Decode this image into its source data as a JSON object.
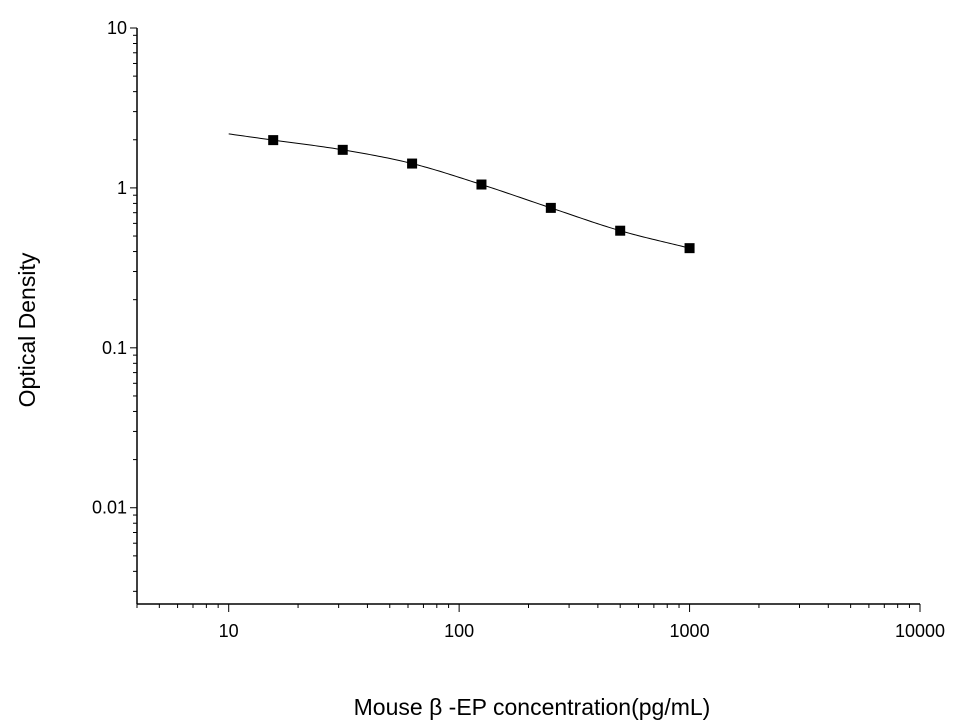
{
  "chart_data": {
    "type": "scatter",
    "title": "",
    "xlabel": "Mouse β -EP concentration(pg/mL)",
    "ylabel": "Optical Density",
    "x_scale": "log",
    "y_scale": "log",
    "xlim": [
      4,
      10000
    ],
    "ylim": [
      0.0025,
      10
    ],
    "x_ticks": [
      10,
      100,
      1000,
      10000
    ],
    "x_tick_labels": [
      "10",
      "100",
      "1000",
      "10000"
    ],
    "y_ticks": [
      0.01,
      0.1,
      1,
      10
    ],
    "y_tick_labels": [
      "0.01",
      "0.1",
      "1",
      "10"
    ],
    "grid": false,
    "legend": "none",
    "series": [
      {
        "x": [
          15.6,
          31.25,
          62.5,
          125,
          250,
          500,
          1000
        ],
        "y": [
          1.99,
          1.73,
          1.42,
          1.05,
          0.75,
          0.54,
          0.42
        ],
        "marker": "square",
        "color": "#000000"
      }
    ],
    "fit_curve": {
      "type": "line",
      "x_range": [
        10,
        1000
      ],
      "color": "#000000"
    }
  }
}
